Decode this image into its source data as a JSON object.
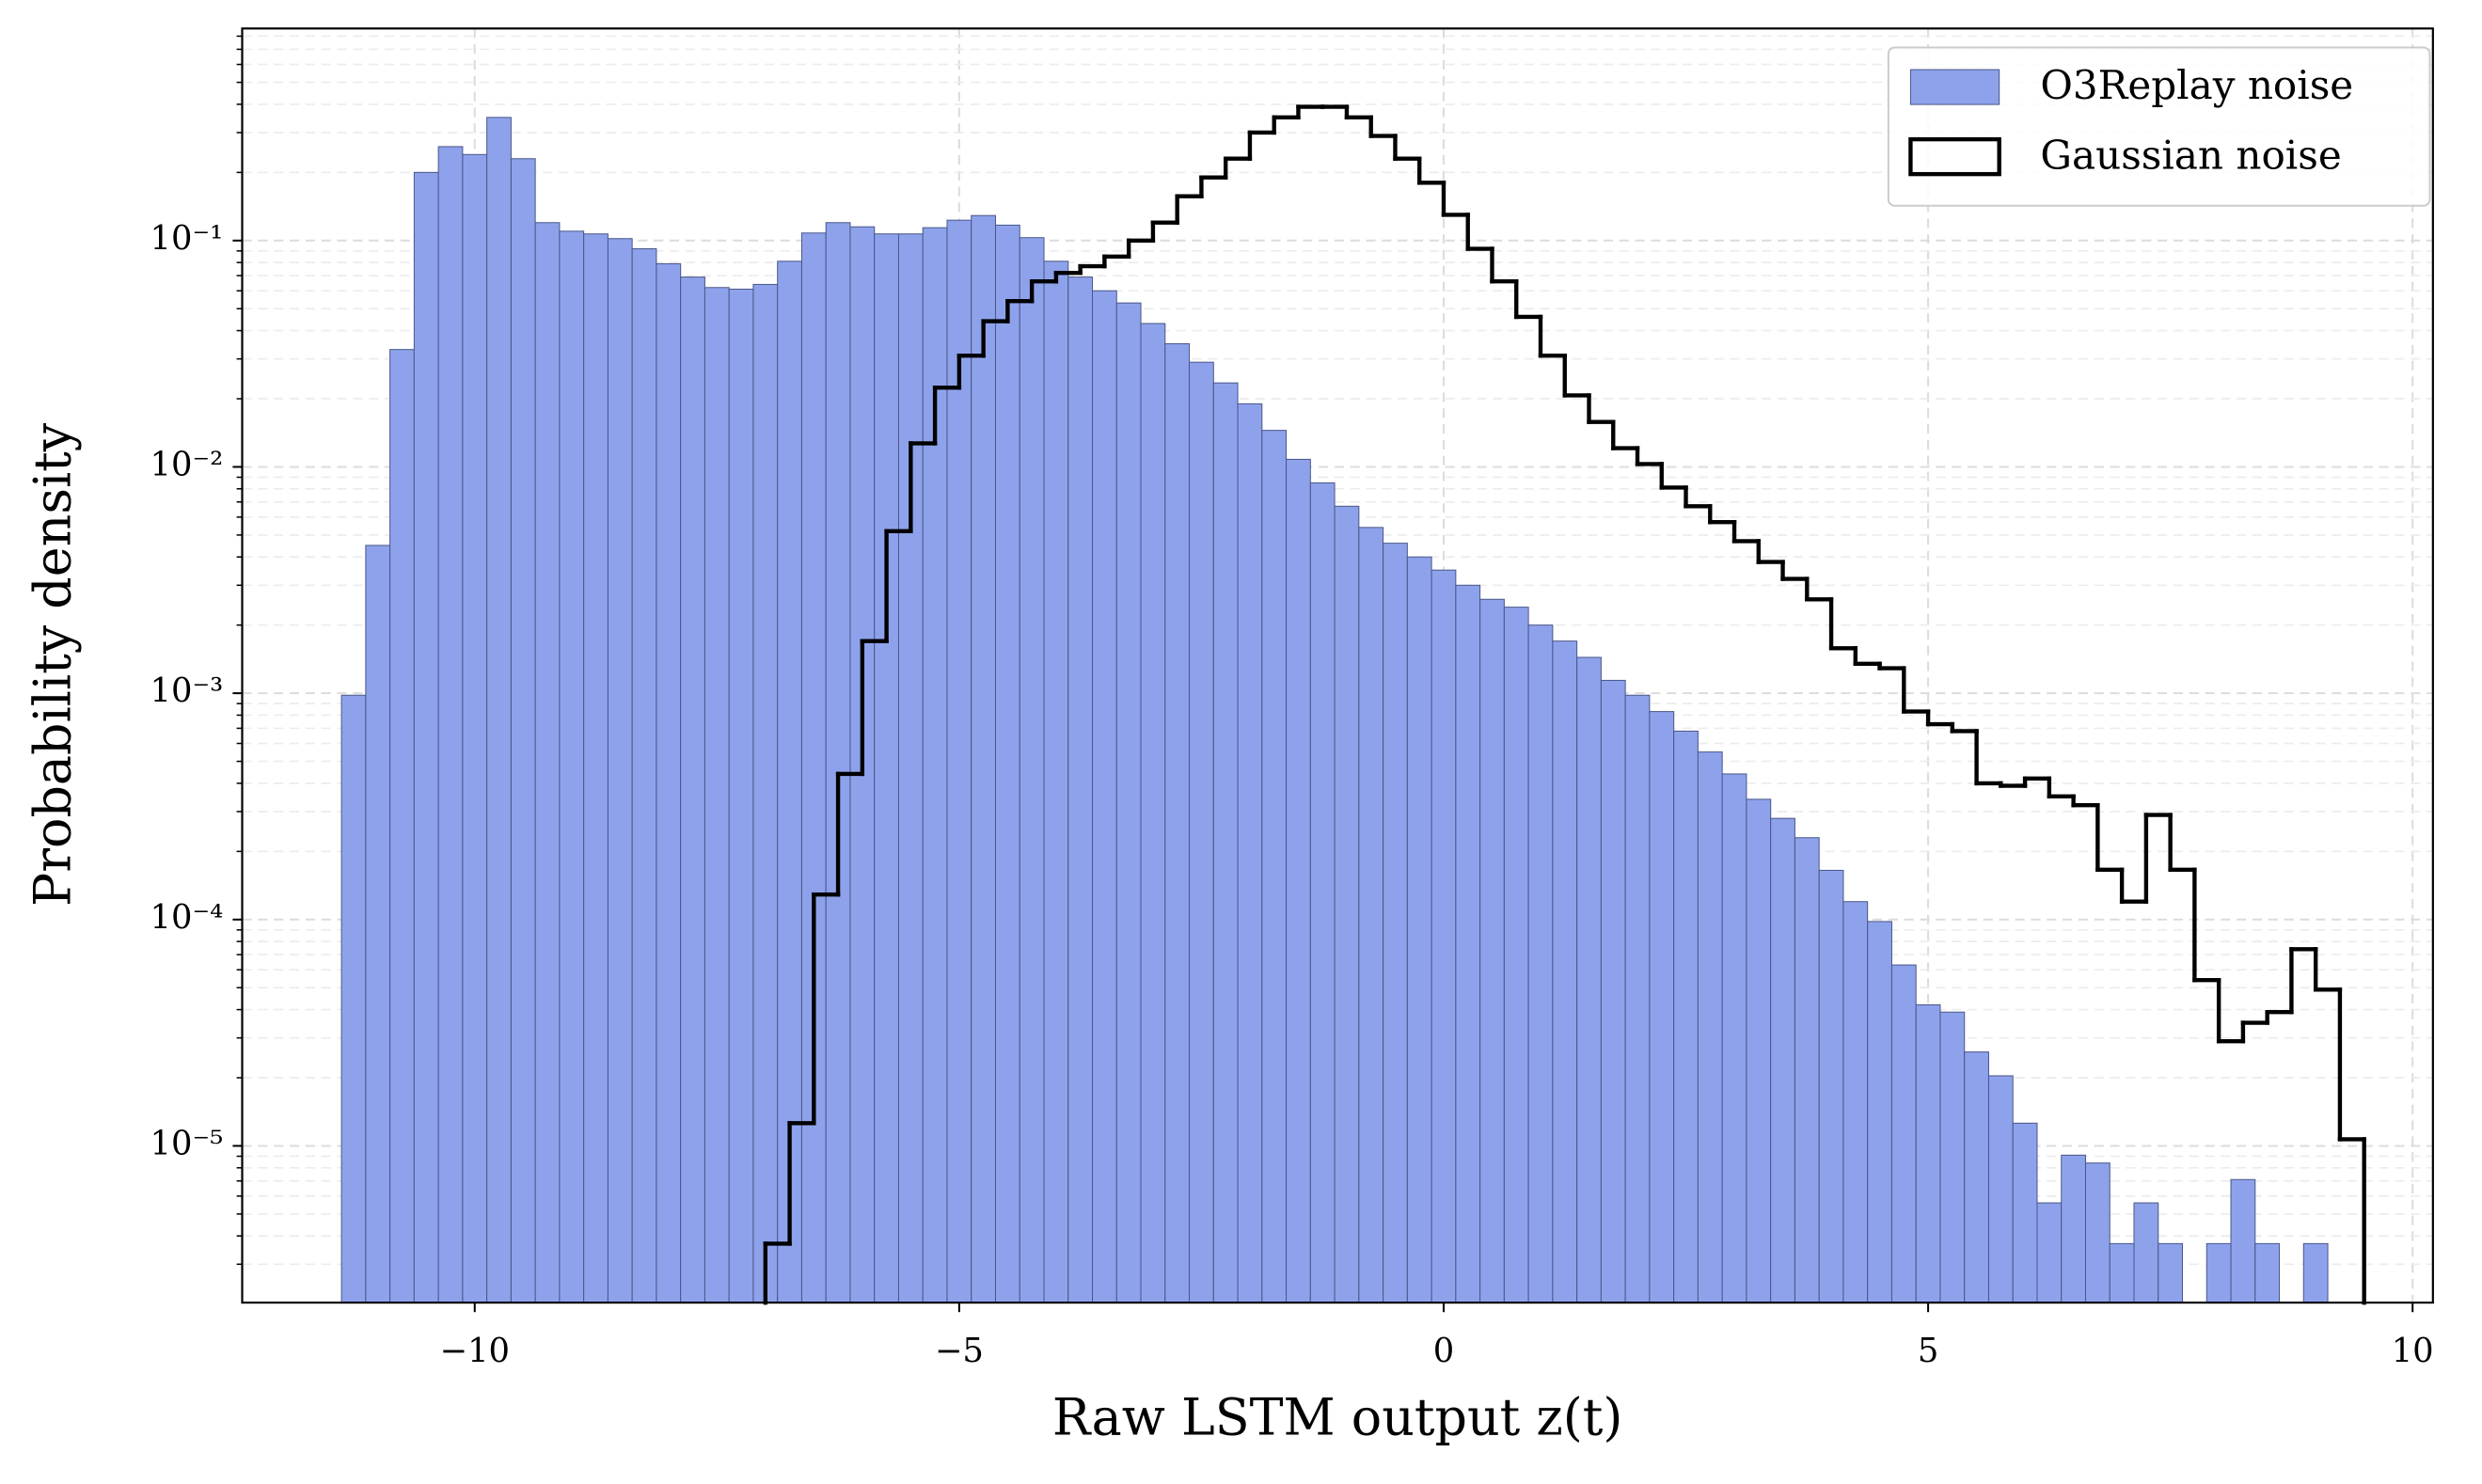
{
  "chart_data": {
    "type": "histogram",
    "xlabel": "Raw LSTM output z(t)",
    "ylabel": "Probability density",
    "xlim": [
      -12.4,
      10.21
    ],
    "ylim": [
      2.03e-06,
      0.865
    ],
    "yscale": "log",
    "grid": true,
    "legend": "upper right",
    "xticks": [
      {
        "value": -10,
        "label": "−10"
      },
      {
        "value": -5,
        "label": "−5"
      },
      0,
      5,
      10
    ],
    "yticks": [
      {
        "value": 1e-05,
        "label": "10⁻⁵"
      },
      {
        "value": 0.0001,
        "label": "10⁻⁴"
      },
      {
        "value": 0.001,
        "label": "10⁻³"
      },
      {
        "value": 0.01,
        "label": "10⁻²"
      },
      {
        "value": 0.1,
        "label": "10⁻¹"
      }
    ],
    "yticks_minor": [
      3e-06,
      4e-06,
      5e-06,
      6e-06,
      7e-06,
      8e-06,
      9e-06,
      2e-05,
      3e-05,
      4e-05,
      5e-05,
      6e-05,
      7e-05,
      8e-05,
      9e-05,
      0.0002,
      0.0003,
      0.0004,
      0.0005,
      0.0006,
      0.0007,
      0.0008,
      0.0009,
      0.002,
      0.003,
      0.004,
      0.005,
      0.006,
      0.007,
      0.008,
      0.009,
      0.02,
      0.03,
      0.04,
      0.05,
      0.06,
      0.07,
      0.08,
      0.09,
      0.2,
      0.3,
      0.4,
      0.5,
      0.6,
      0.7,
      0.8
    ],
    "series": [
      {
        "name": "O3Replay noise",
        "histtype": "bar",
        "color": "#8ea2ec",
        "edgecolor": "#4a5788",
        "bins": [
          -11.375,
          -11.125,
          -10.875,
          -10.625,
          -10.375,
          -10.125,
          -9.875,
          -9.625,
          -9.375,
          -9.125,
          -8.875,
          -8.625,
          -8.375,
          -8.125,
          -7.875,
          -7.625,
          -7.375,
          -7.125,
          -6.875,
          -6.625,
          -6.375,
          -6.125,
          -5.875,
          -5.625,
          -5.375,
          -5.125,
          -4.875,
          -4.625,
          -4.375,
          -4.125,
          -3.875,
          -3.625,
          -3.375,
          -3.125,
          -2.875,
          -2.625,
          -2.375,
          -2.125,
          -1.875,
          -1.625,
          -1.375,
          -1.125,
          -0.875,
          -0.625,
          -0.375,
          -0.125,
          0.125,
          0.375,
          0.625,
          0.875,
          1.125,
          1.375,
          1.625,
          1.875,
          2.125,
          2.375,
          2.625,
          2.875,
          3.125,
          3.375,
          3.625,
          3.875,
          4.125,
          4.375,
          4.625,
          4.875,
          5.125,
          5.375,
          5.625,
          5.875,
          6.125,
          6.375,
          6.625,
          6.875,
          7.125,
          7.375,
          7.625,
          7.875,
          8.125,
          8.375,
          8.625,
          8.875,
          9.125
        ],
        "values": [
          0.00098,
          0.0045,
          0.033,
          0.2,
          0.26,
          0.24,
          0.35,
          0.23,
          0.12,
          0.11,
          0.107,
          0.102,
          0.092,
          0.079,
          0.069,
          0.062,
          0.061,
          0.064,
          0.081,
          0.108,
          0.12,
          0.115,
          0.107,
          0.107,
          0.114,
          0.123,
          0.129,
          0.117,
          0.103,
          0.081,
          0.069,
          0.06,
          0.053,
          0.043,
          0.035,
          0.029,
          0.0235,
          0.019,
          0.0145,
          0.0108,
          0.0085,
          0.0067,
          0.0054,
          0.0046,
          0.004,
          0.0035,
          0.003,
          0.0026,
          0.0024,
          0.002,
          0.0017,
          0.00144,
          0.00114,
          0.00098,
          0.00083,
          0.00068,
          0.00055,
          0.00044,
          0.00034,
          0.00028,
          0.00023,
          0.000165,
          0.00012,
          9.8e-05,
          6.3e-05,
          4.2e-05,
          3.9e-05,
          2.6e-05,
          2.04e-05,
          1.26e-05,
          5.6e-06,
          9.1e-06,
          8.4e-06,
          3.7e-06,
          5.6e-06,
          3.7e-06,
          0,
          3.7e-06,
          7.1e-06,
          3.7e-06,
          0,
          3.7e-06
        ]
      },
      {
        "name": "Gaussian noise",
        "histtype": "step",
        "color": "#000000",
        "bins": [
          -7,
          -6.75,
          -6.5,
          -6.25,
          -6,
          -5.75,
          -5.5,
          -5.25,
          -5,
          -4.75,
          -4.5,
          -4.25,
          -4,
          -3.75,
          -3.5,
          -3.25,
          -3,
          -2.75,
          -2.5,
          -2.25,
          -2,
          -1.75,
          -1.5,
          -1.25,
          -1,
          -0.75,
          -0.5,
          -0.25,
          0,
          0.25,
          0.5,
          0.75,
          1,
          1.25,
          1.5,
          1.75,
          2,
          2.25,
          2.5,
          2.75,
          3,
          3.25,
          3.5,
          3.75,
          4,
          4.25,
          4.5,
          4.75,
          5,
          5.25,
          5.5,
          5.75,
          6,
          6.25,
          6.5,
          6.75,
          7,
          7.25,
          7.5,
          7.75,
          8,
          8.25,
          8.5,
          8.75,
          9,
          9.25,
          9.5
        ],
        "values": [
          3.7e-06,
          1.26e-05,
          0.000129,
          0.00044,
          0.0017,
          0.0052,
          0.0127,
          0.0224,
          0.031,
          0.044,
          0.054,
          0.066,
          0.072,
          0.077,
          0.085,
          0.1,
          0.12,
          0.157,
          0.19,
          0.23,
          0.3,
          0.35,
          0.39,
          0.39,
          0.35,
          0.29,
          0.23,
          0.18,
          0.13,
          0.092,
          0.066,
          0.046,
          0.031,
          0.0207,
          0.0158,
          0.0121,
          0.0103,
          0.0081,
          0.0067,
          0.0057,
          0.0047,
          0.0038,
          0.0032,
          0.0026,
          0.00158,
          0.00135,
          0.00129,
          0.00083,
          0.00073,
          0.00068,
          0.0004,
          0.00039,
          0.00042,
          0.00035,
          0.00032,
          0.000166,
          0.00012,
          0.00029,
          0.000166,
          5.4e-05,
          2.9e-05,
          3.5e-05,
          3.9e-05,
          7.4e-05,
          4.9e-05,
          1.07e-05
        ]
      }
    ]
  }
}
